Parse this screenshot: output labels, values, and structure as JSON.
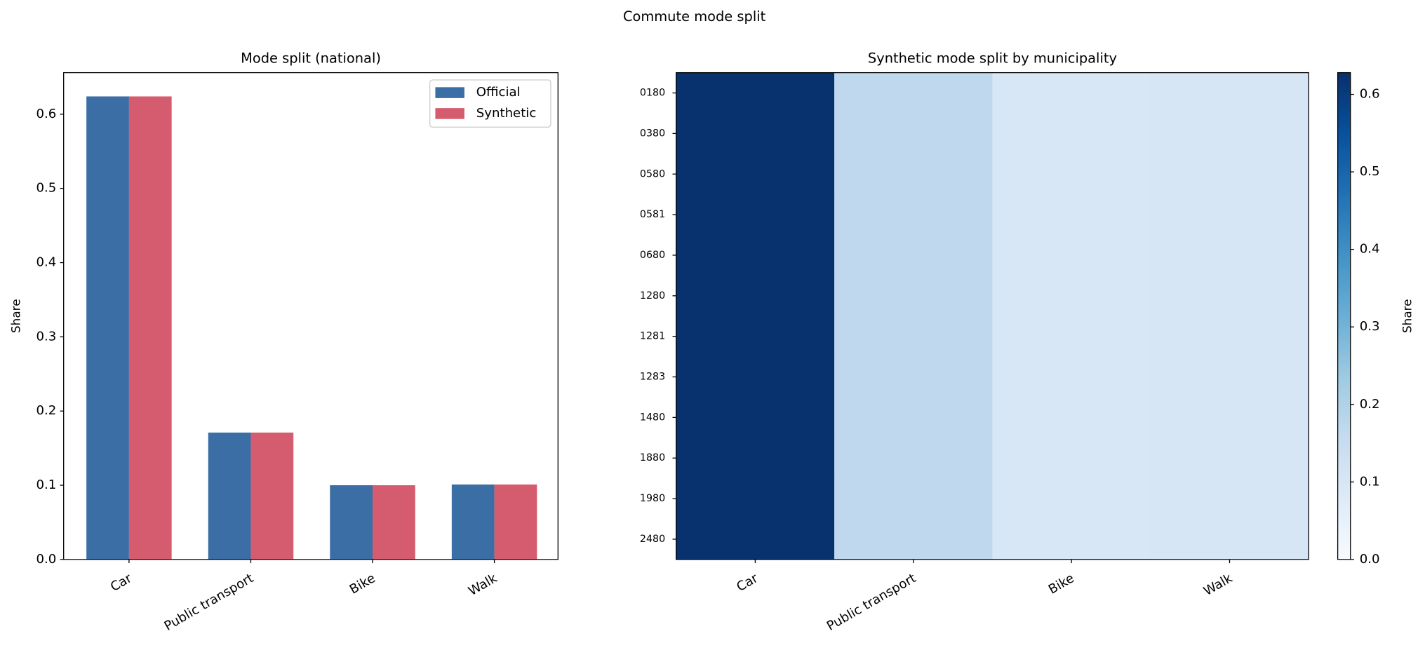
{
  "title": "Commute mode split",
  "chart_data": [
    {
      "type": "bar",
      "title": "Mode split (national)",
      "ylabel": "Share",
      "categories": [
        "Car",
        "Public transport",
        "Bike",
        "Walk"
      ],
      "series": [
        {
          "name": "Official",
          "color": "#3b6ea5",
          "values": [
            0.624,
            0.171,
            0.1,
            0.101
          ]
        },
        {
          "name": "Synthetic",
          "color": "#d45c6e",
          "values": [
            0.624,
            0.171,
            0.1,
            0.101
          ]
        }
      ],
      "ylim": [
        0,
        0.656
      ],
      "yticks": [
        0.0,
        0.1,
        0.2,
        0.3,
        0.4,
        0.5,
        0.6
      ],
      "legend": "upper right",
      "grid": false
    },
    {
      "type": "heatmap",
      "title": "Synthetic mode split by municipality",
      "x": [
        "Car",
        "Public transport",
        "Bike",
        "Walk"
      ],
      "y": [
        "0180",
        "0380",
        "0580",
        "0581",
        "0680",
        "1280",
        "1281",
        "1283",
        "1480",
        "1880",
        "1980",
        "2480"
      ],
      "values": [
        [
          0.624,
          0.171,
          0.1,
          0.101
        ],
        [
          0.624,
          0.171,
          0.1,
          0.101
        ],
        [
          0.624,
          0.171,
          0.1,
          0.101
        ],
        [
          0.624,
          0.171,
          0.1,
          0.101
        ],
        [
          0.624,
          0.171,
          0.1,
          0.101
        ],
        [
          0.624,
          0.171,
          0.1,
          0.101
        ],
        [
          0.624,
          0.171,
          0.1,
          0.101
        ],
        [
          0.624,
          0.171,
          0.1,
          0.101
        ],
        [
          0.624,
          0.171,
          0.1,
          0.101
        ],
        [
          0.624,
          0.171,
          0.1,
          0.101
        ],
        [
          0.624,
          0.171,
          0.1,
          0.101
        ],
        [
          0.624,
          0.171,
          0.1,
          0.101
        ]
      ],
      "colormap": "Blues",
      "clim": [
        0,
        0.628
      ],
      "cticks": [
        0.0,
        0.1,
        0.2,
        0.3,
        0.4,
        0.5,
        0.6
      ],
      "colorbar_label": "Share"
    }
  ]
}
